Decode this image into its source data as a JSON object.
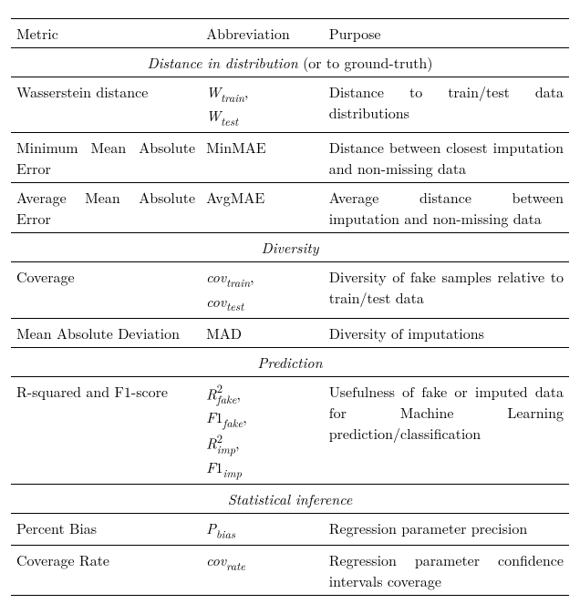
{
  "headers": {
    "metric": "Metric",
    "abbr": "Abbreviation",
    "purpose": "Purpose"
  },
  "sections": {
    "distance": {
      "title_italic": "Distance in distribution",
      "title_plain": " (or to ground-truth)"
    },
    "diversity": {
      "title_italic": "Diversity"
    },
    "prediction": {
      "title_italic": "Prediction"
    },
    "statistical": {
      "title_italic": "Statistical inference"
    }
  },
  "rows": {
    "wasserstein": {
      "metric": "Wasserstein distance",
      "abbr_w": "W",
      "abbr_train": "train",
      "abbr_test": "test",
      "sep": ",",
      "purpose": "Distance to train/test data distributions"
    },
    "minmae": {
      "metric": "Minimum Mean Absolute Error",
      "abbr": "MinMAE",
      "purpose": "Distance between closest imputation and non-missing data"
    },
    "avgmae": {
      "metric": "Average Mean Absolute Error",
      "abbr": "AvgMAE",
      "purpose": "Average distance between imputation and non-missing data"
    },
    "coverage": {
      "metric": "Coverage",
      "abbr_cov": "cov",
      "abbr_train": "train",
      "abbr_test": "test",
      "sep": ",",
      "purpose": "Diversity of fake samples relative to train/test data"
    },
    "mad": {
      "metric": "Mean Absolute Deviation",
      "abbr": "MAD",
      "purpose": "Diversity of imputations"
    },
    "rsq": {
      "metric": "R-squared and F1-score",
      "abbr_R": "R",
      "abbr_F": "F",
      "abbr_one": "1",
      "abbr_two": "2",
      "abbr_fake": "fake",
      "abbr_imp": "imp",
      "sep": ",",
      "purpose": "Usefulness of fake or imputed data for Machine Learning prediction/classification"
    },
    "pbias": {
      "metric": "Percent Bias",
      "abbr_P": "P",
      "abbr_bias": "bias",
      "purpose": "Regression parameter precision"
    },
    "covrate": {
      "metric": "Coverage Rate",
      "abbr_cov": "cov",
      "abbr_rate": "rate",
      "purpose": "Regression parameter confidence intervals coverage"
    }
  }
}
